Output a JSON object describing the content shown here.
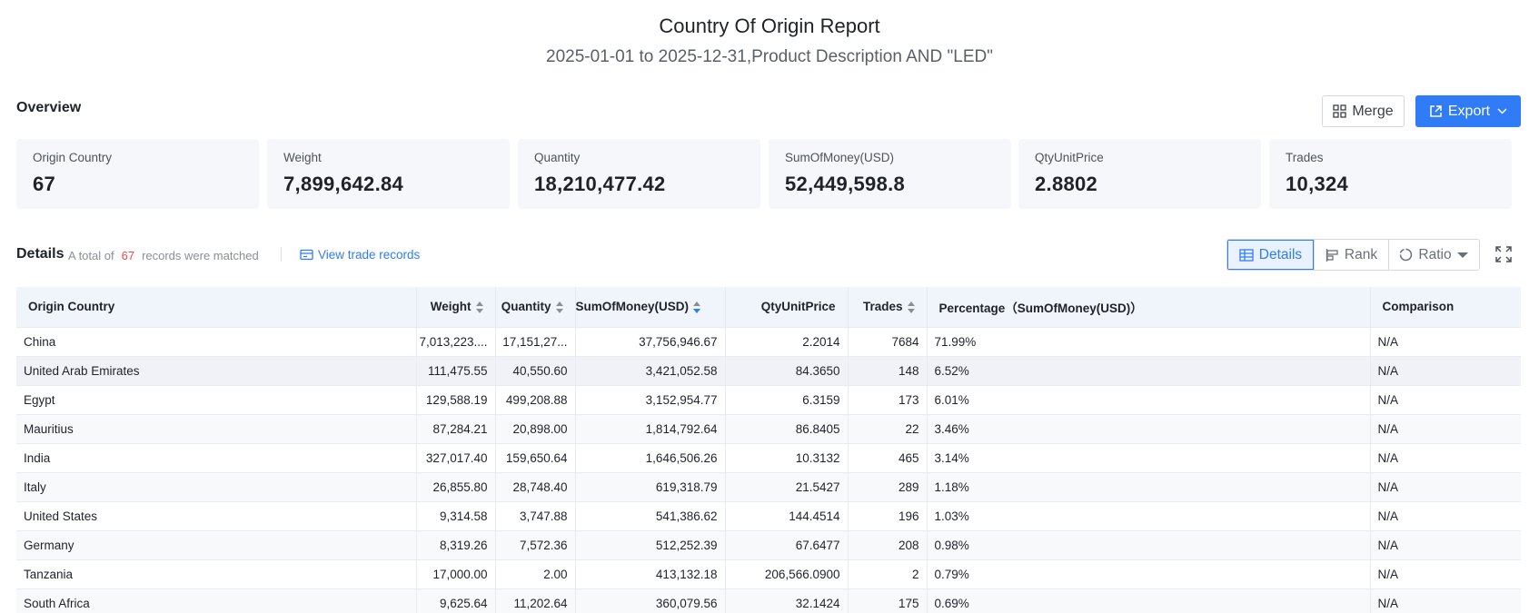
{
  "report": {
    "title": "Country Of Origin Report",
    "subtitle": "2025-01-01 to 2025-12-31,Product Description AND \"LED\""
  },
  "overview": {
    "label": "Overview",
    "merge_label": "Merge",
    "export_label": "Export",
    "cards": [
      {
        "label": "Origin Country",
        "value": "67"
      },
      {
        "label": "Weight",
        "value": "7,899,642.84"
      },
      {
        "label": "Quantity",
        "value": "18,210,477.42"
      },
      {
        "label": "SumOfMoney(USD)",
        "value": "52,449,598.8"
      },
      {
        "label": "QtyUnitPrice",
        "value": "2.8802"
      },
      {
        "label": "Trades",
        "value": "10,324"
      }
    ]
  },
  "details": {
    "title": "Details",
    "summary_prefix": "A total of",
    "summary_count": "67",
    "summary_suffix": "records were matched",
    "view_link": "View trade records",
    "views": {
      "details": "Details",
      "rank": "Rank",
      "ratio": "Ratio"
    }
  },
  "table": {
    "headers": {
      "country": "Origin Country",
      "weight": "Weight",
      "quantity": "Quantity",
      "money": "SumOfMoney(USD)",
      "unit_price": "QtyUnitPrice",
      "trades": "Trades",
      "percentage": "Percentage（SumOfMoney(USD)）",
      "comparison": "Comparison"
    },
    "rows": [
      {
        "country": "China",
        "weight": "7,013,223....",
        "quantity": "17,151,27...",
        "money": "37,756,946.67",
        "unit_price": "2.2014",
        "trades": "7684",
        "percentage": "71.99%",
        "comparison": "N/A"
      },
      {
        "country": "United Arab Emirates",
        "weight": "111,475.55",
        "quantity": "40,550.60",
        "money": "3,421,052.58",
        "unit_price": "84.3650",
        "trades": "148",
        "percentage": "6.52%",
        "comparison": "N/A"
      },
      {
        "country": "Egypt",
        "weight": "129,588.19",
        "quantity": "499,208.88",
        "money": "3,152,954.77",
        "unit_price": "6.3159",
        "trades": "173",
        "percentage": "6.01%",
        "comparison": "N/A"
      },
      {
        "country": "Mauritius",
        "weight": "87,284.21",
        "quantity": "20,898.00",
        "money": "1,814,792.64",
        "unit_price": "86.8405",
        "trades": "22",
        "percentage": "3.46%",
        "comparison": "N/A"
      },
      {
        "country": "India",
        "weight": "327,017.40",
        "quantity": "159,650.64",
        "money": "1,646,506.26",
        "unit_price": "10.3132",
        "trades": "465",
        "percentage": "3.14%",
        "comparison": "N/A"
      },
      {
        "country": "Italy",
        "weight": "26,855.80",
        "quantity": "28,748.40",
        "money": "619,318.79",
        "unit_price": "21.5427",
        "trades": "289",
        "percentage": "1.18%",
        "comparison": "N/A"
      },
      {
        "country": "United States",
        "weight": "9,314.58",
        "quantity": "3,747.88",
        "money": "541,386.62",
        "unit_price": "144.4514",
        "trades": "196",
        "percentage": "1.03%",
        "comparison": "N/A"
      },
      {
        "country": "Germany",
        "weight": "8,319.26",
        "quantity": "7,572.36",
        "money": "512,252.39",
        "unit_price": "67.6477",
        "trades": "208",
        "percentage": "0.98%",
        "comparison": "N/A"
      },
      {
        "country": "Tanzania",
        "weight": "17,000.00",
        "quantity": "2.00",
        "money": "413,132.18",
        "unit_price": "206,566.0900",
        "trades": "2",
        "percentage": "0.79%",
        "comparison": "N/A"
      },
      {
        "country": "South Africa",
        "weight": "9,625.64",
        "quantity": "11,202.64",
        "money": "360,079.56",
        "unit_price": "32.1424",
        "trades": "175",
        "percentage": "0.69%",
        "comparison": "N/A"
      }
    ]
  },
  "colors": {
    "accent": "#2f7cf6",
    "count": "#e34d4d",
    "header_bg": "#f0f4fb",
    "card_bg": "#f5f7fa"
  }
}
